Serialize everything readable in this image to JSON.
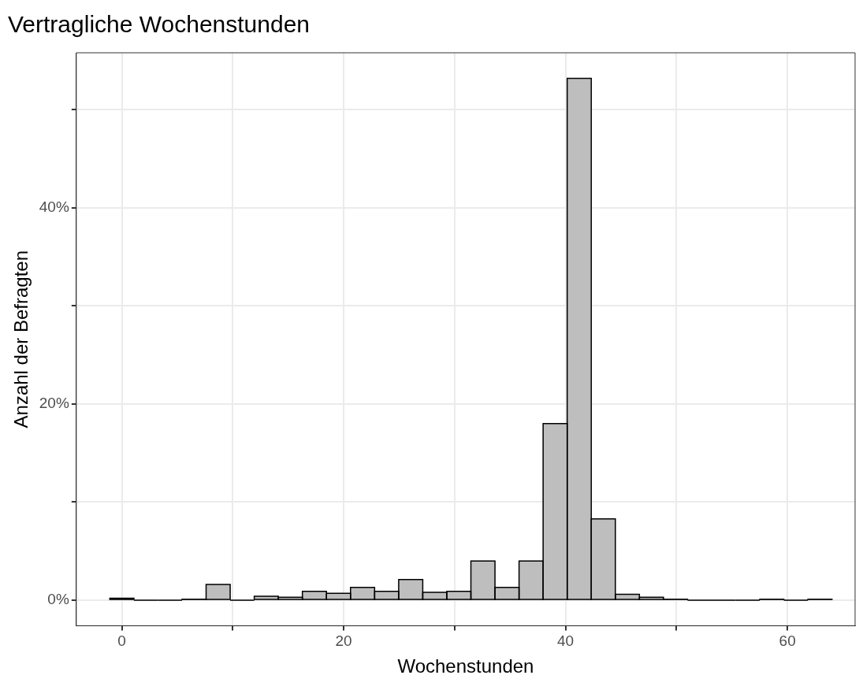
{
  "chart_data": {
    "type": "histogram",
    "title": "Vertragliche Wochenstunden",
    "xlabel": "Wochenstunden",
    "ylabel": "Anzahl der Befragten",
    "bins": [
      -1.08,
      1.09,
      3.26,
      5.43,
      7.6,
      9.77,
      11.94,
      14.11,
      16.28,
      18.45,
      20.62,
      22.79,
      24.96,
      27.13,
      29.3,
      31.47,
      33.64,
      35.81,
      37.98,
      40.15,
      42.32,
      44.49,
      46.66,
      48.83,
      51,
      53.17,
      55.34,
      57.51,
      59.68,
      61.85,
      64.02
    ],
    "values": [
      0.2,
      0,
      0,
      0.1,
      1.6,
      0,
      0.4,
      0.3,
      0.9,
      0.7,
      1.3,
      0.9,
      2.1,
      0.8,
      0.9,
      4.0,
      1.3,
      4.0,
      18.0,
      53.2,
      8.3,
      0.6,
      0.3,
      0.1,
      0,
      0,
      0,
      0.1,
      0,
      0.1
    ],
    "color": "#bebebe",
    "xlim": [
      -4.1,
      66.1
    ],
    "xticks": [
      0,
      {
        "value": 10,
        "label": null
      },
      20,
      {
        "value": 30,
        "label": null
      },
      40,
      {
        "value": 50,
        "label": null
      },
      60
    ],
    "ylim": [
      -2.6,
      55.8
    ],
    "yticks": [
      {
        "value": 0,
        "label": "0%"
      },
      {
        "value": 10,
        "label": null
      },
      {
        "value": 20,
        "label": "20%"
      },
      {
        "value": 30,
        "label": null
      },
      {
        "value": 40,
        "label": "40%"
      },
      {
        "value": 50,
        "label": null
      }
    ],
    "grid": true,
    "legend": false
  }
}
